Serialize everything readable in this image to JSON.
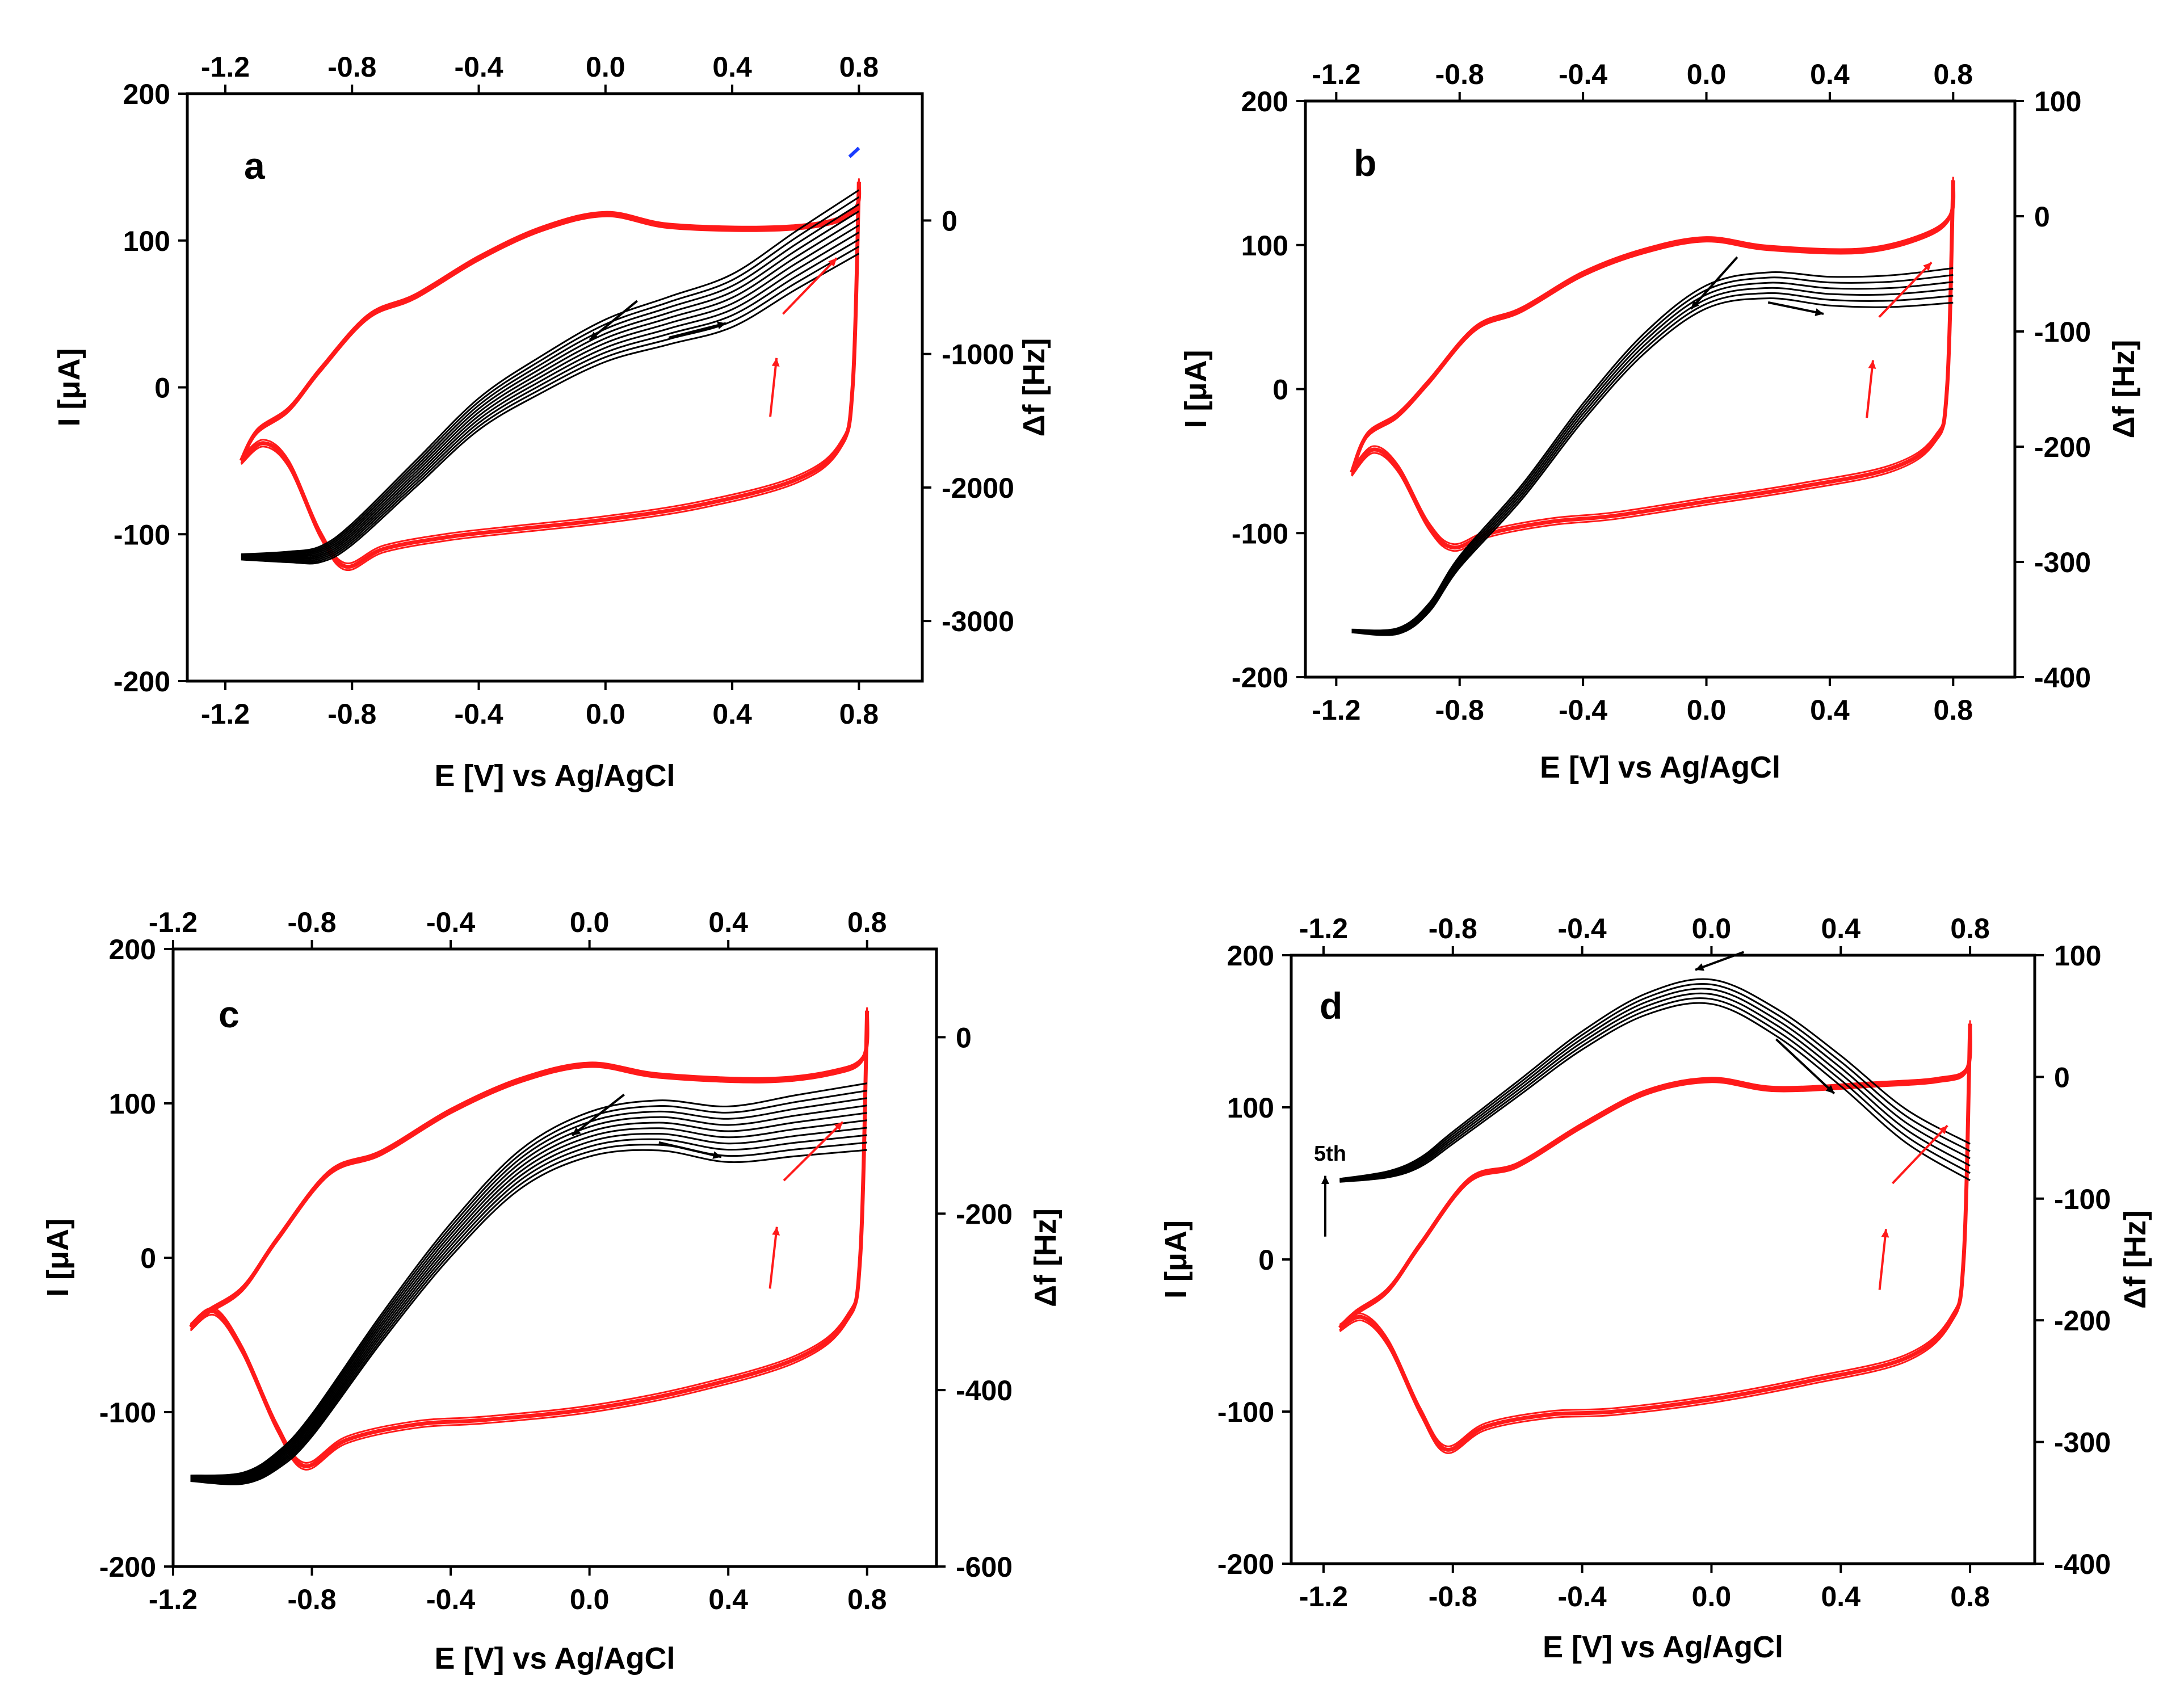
{
  "figure": {
    "colors": {
      "cv": "#ff1a1a",
      "mass": "#000000",
      "frame": "#000000",
      "marker": "#1a3cff"
    }
  },
  "chart_data": [
    {
      "type": "line",
      "panel": "a",
      "xlabel": "E [V] vs Ag/AgCl",
      "ylabel": "I [μA]",
      "y2label": "Δf [Hz]",
      "xlim": [
        -1.32,
        1.0
      ],
      "ylim": [
        -200,
        200
      ],
      "y2lim": [
        -3450,
        950
      ],
      "x_ticks": [
        "-1.2",
        "-0.8",
        "-0.4",
        "0.0",
        "0.4",
        "0.8"
      ],
      "y_ticks": [
        "200",
        "100",
        "0",
        "-100",
        "-200"
      ],
      "y2_ticks": [
        "0",
        "-1000",
        "-2000",
        "-3000"
      ],
      "cv_current_uA": {
        "x": [
          0.8,
          0.79,
          0.7,
          0.5,
          0.2,
          0.0,
          -0.2,
          -0.4,
          -0.6,
          -0.75,
          -0.9,
          -1.0,
          -1.1,
          -1.15
        ],
        "y": [
          140,
          122,
          112,
          108,
          110,
          118,
          108,
          88,
          62,
          48,
          12,
          -15,
          -30,
          -50
        ],
        "return_x": [
          -1.15,
          -1.08,
          -1.0,
          -0.9,
          -0.82,
          -0.7,
          -0.5,
          -0.3,
          0.0,
          0.3,
          0.6,
          0.74,
          0.78,
          0.8
        ],
        "return_y": [
          -50,
          -38,
          -52,
          -100,
          -122,
          -110,
          -102,
          -97,
          -90,
          -80,
          -63,
          -40,
          0,
          140
        ]
      },
      "mass_cycles": 10,
      "mass_frequency_Hz": {
        "x": [
          0.8,
          0.6,
          0.4,
          0.2,
          0.0,
          -0.2,
          -0.4,
          -0.6,
          -0.8,
          -0.9,
          -1.0,
          -1.15
        ],
        "y": [
          -10,
          -300,
          -600,
          -750,
          -900,
          -1150,
          -1450,
          -1900,
          -2350,
          -2500,
          -2520,
          -2520
        ]
      },
      "annotations": [
        "arrows indicating scan direction"
      ]
    },
    {
      "type": "line",
      "panel": "b",
      "xlabel": "E [V] vs Ag/AgCl",
      "ylabel": "I [μA]",
      "y2label": "Δf [Hz]",
      "xlim": [
        -1.3,
        1.0
      ],
      "ylim": [
        -200,
        200
      ],
      "y2lim": [
        -400,
        100
      ],
      "x_ticks": [
        "-1.2",
        "-0.8",
        "-0.4",
        "0.0",
        "0.4",
        "0.8"
      ],
      "y_ticks": [
        "200",
        "100",
        "0",
        "-100",
        "-200"
      ],
      "y2_ticks": [
        "100",
        "0",
        "-100",
        "-200",
        "-300",
        "-400"
      ],
      "cv_current_uA": {
        "x": [
          0.8,
          0.79,
          0.7,
          0.5,
          0.2,
          0.0,
          -0.2,
          -0.4,
          -0.6,
          -0.75,
          -0.9,
          -1.0,
          -1.1,
          -1.15
        ],
        "y": [
          145,
          120,
          106,
          96,
          98,
          104,
          96,
          80,
          55,
          42,
          5,
          -18,
          -32,
          -58
        ],
        "return_x": [
          -1.15,
          -1.08,
          -1.0,
          -0.9,
          -0.82,
          -0.7,
          -0.5,
          -0.3,
          0.0,
          0.3,
          0.6,
          0.74,
          0.78,
          0.8
        ],
        "return_y": [
          -58,
          -42,
          -55,
          -95,
          -110,
          -100,
          -92,
          -88,
          -78,
          -68,
          -55,
          -35,
          0,
          145
        ]
      },
      "mass_cycles": 6,
      "mass_frequency_Hz": {
        "x": [
          0.8,
          0.6,
          0.4,
          0.2,
          0.0,
          -0.2,
          -0.4,
          -0.6,
          -0.8,
          -0.9,
          -1.0,
          -1.15
        ],
        "y": [
          -60,
          -65,
          -65,
          -60,
          -70,
          -110,
          -170,
          -240,
          -300,
          -340,
          -360,
          -360
        ]
      },
      "annotations": [
        "arrows indicating scan direction"
      ]
    },
    {
      "type": "line",
      "panel": "c",
      "xlabel": "E [V] vs Ag/AgCl",
      "ylabel": "I [μA]",
      "y2label": "Δf [Hz]",
      "xlim": [
        -1.2,
        1.0
      ],
      "ylim": [
        -200,
        200
      ],
      "y2lim": [
        -600,
        100
      ],
      "x_ticks": [
        "-1.2",
        "-0.8",
        "-0.4",
        "0.0",
        "0.4",
        "0.8"
      ],
      "y_ticks": [
        "200",
        "100",
        "0",
        "-100",
        "-200"
      ],
      "y2_ticks": [
        "0",
        "-200",
        "-400",
        "-600"
      ],
      "cv_current_uA": {
        "x": [
          0.8,
          0.79,
          0.7,
          0.5,
          0.2,
          0.0,
          -0.2,
          -0.4,
          -0.6,
          -0.75,
          -0.9,
          -1.0,
          -1.1,
          -1.15
        ],
        "y": [
          160,
          130,
          120,
          115,
          118,
          125,
          115,
          95,
          68,
          55,
          12,
          -20,
          -35,
          -45
        ],
        "return_x": [
          -1.15,
          -1.08,
          -1.0,
          -0.9,
          -0.82,
          -0.7,
          -0.5,
          -0.3,
          0.0,
          0.3,
          0.6,
          0.74,
          0.78,
          0.8
        ],
        "return_y": [
          -45,
          -35,
          -60,
          -110,
          -135,
          -118,
          -108,
          -105,
          -98,
          -85,
          -65,
          -40,
          0,
          160
        ]
      },
      "mass_cycles": 10,
      "mass_frequency_Hz": {
        "x": [
          0.8,
          0.6,
          0.4,
          0.2,
          0.0,
          -0.2,
          -0.4,
          -0.6,
          -0.8,
          -0.9,
          -1.0,
          -1.15
        ],
        "y": [
          -90,
          -100,
          -110,
          -100,
          -110,
          -150,
          -230,
          -330,
          -440,
          -480,
          -500,
          -500
        ]
      },
      "annotations": [
        "arrows indicating scan direction"
      ]
    },
    {
      "type": "line",
      "panel": "d",
      "xlabel": "E [V] vs Ag/AgCl",
      "ylabel": "I [μA]",
      "y2label": "Δf [Hz]",
      "xlim": [
        -1.3,
        1.0
      ],
      "ylim": [
        -200,
        200
      ],
      "y2lim": [
        -400,
        100
      ],
      "x_ticks": [
        "-1.2",
        "-0.8",
        "-0.4",
        "0.0",
        "0.4",
        "0.8"
      ],
      "y_ticks": [
        "200",
        "100",
        "0",
        "-100",
        "-200"
      ],
      "y2_ticks": [
        "100",
        "0",
        "-100",
        "-200",
        "-300",
        "-400"
      ],
      "cv_current_uA": {
        "x": [
          0.8,
          0.79,
          0.7,
          0.5,
          0.2,
          0.0,
          -0.2,
          -0.4,
          -0.6,
          -0.75,
          -0.9,
          -1.0,
          -1.1,
          -1.15
        ],
        "y": [
          155,
          125,
          118,
          115,
          112,
          118,
          110,
          88,
          62,
          52,
          10,
          -20,
          -35,
          -45
        ],
        "return_x": [
          -1.15,
          -1.08,
          -1.0,
          -0.9,
          -0.82,
          -0.7,
          -0.5,
          -0.3,
          0.0,
          0.3,
          0.6,
          0.74,
          0.78,
          0.8
        ],
        "return_y": [
          -45,
          -38,
          -55,
          -100,
          -125,
          -110,
          -102,
          -100,
          -92,
          -80,
          -65,
          -40,
          0,
          155
        ]
      },
      "mass_cycles": 6,
      "mass_frequency_Hz": {
        "x": [
          0.8,
          0.6,
          0.4,
          0.2,
          0.0,
          -0.2,
          -0.4,
          -0.6,
          -0.8,
          -0.9,
          -1.0,
          -1.15
        ],
        "y": [
          -70,
          -40,
          5,
          45,
          70,
          60,
          30,
          -10,
          -50,
          -70,
          -80,
          -85
        ]
      },
      "annotations": [
        "5th",
        "arrows indicating scan direction"
      ]
    }
  ]
}
